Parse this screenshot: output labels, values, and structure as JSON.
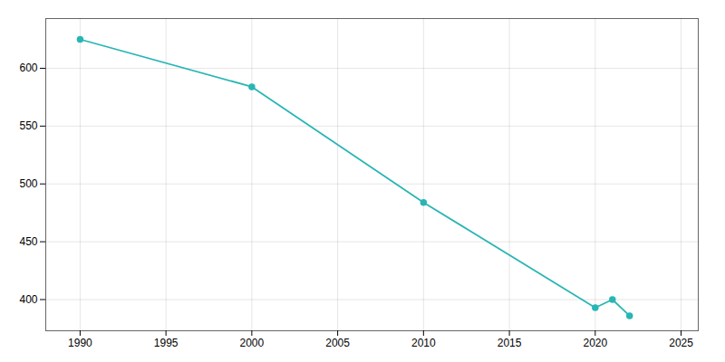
{
  "chart_data": {
    "type": "line",
    "x": [
      1990,
      2000,
      2010,
      2020,
      2021,
      2022
    ],
    "values": [
      625,
      584,
      484,
      393,
      400,
      386
    ],
    "color": "#2ab5b5",
    "marker": "circle",
    "xlim": [
      1988,
      2026
    ],
    "ylim": [
      373,
      643
    ],
    "xticks": [
      1990,
      1995,
      2000,
      2005,
      2010,
      2015,
      2020,
      2025
    ],
    "yticks": [
      400,
      450,
      500,
      550,
      600
    ],
    "grid": true
  }
}
